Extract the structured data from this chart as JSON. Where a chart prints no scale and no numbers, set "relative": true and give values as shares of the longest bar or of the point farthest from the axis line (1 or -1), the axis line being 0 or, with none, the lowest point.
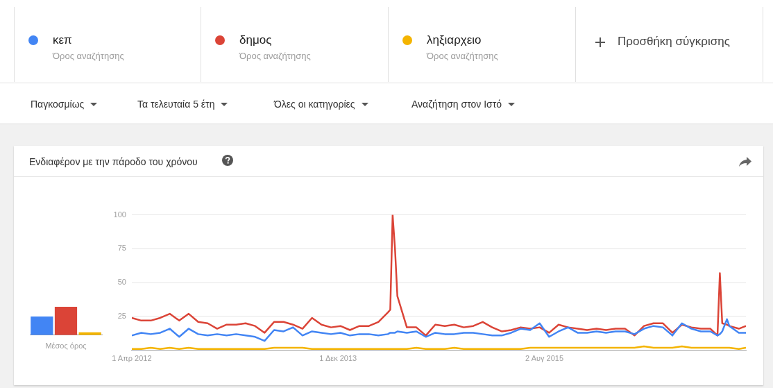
{
  "chart_data": [
    {
      "type": "bar",
      "relative": true,
      "categories": [
        null,
        null,
        null
      ],
      "values": [
        0.66,
        1,
        0.1
      ],
      "colors": [
        "#4285f4",
        "#db4437",
        "#f4b400"
      ],
      "xlabel": "Μέσος όρος"
    },
    {
      "type": "line",
      "title": "Ενδιαφέρον με την πάροδο του χρόνου",
      "legend": "top",
      "grid": "y",
      "marker": "none",
      "annotations": [
        "Όρος αναζήτησης",
        "Όρος αναζήτησης",
        "Όρος αναζήτησης",
        "Προσθήκη σύγκρισης",
        "Παγκοσμίως",
        "Τα τελευταία 5 έτη",
        "Όλες οι κατηγορίες",
        "Αναζήτηση στον Ιστό"
      ],
      "xlim": [
        "2012-04-01",
        "2017-03-19"
      ],
      "xticks": [
        {
          "value": "2012-04-01",
          "label": "1 Απρ 2012"
        },
        {
          "value": "2013-12-01",
          "label": "1 Δεκ 2013"
        },
        {
          "value": "2015-08-02",
          "label": "2 Αυγ 2015"
        }
      ],
      "ylim": [
        0,
        100
      ],
      "yticks": [
        {
          "value": 0,
          "label": null
        },
        25,
        50,
        75,
        100
      ],
      "x": [
        "2012-04-01",
        "2012-04-29",
        "2012-05-27",
        "2012-06-24",
        "2012-07-22",
        "2012-08-19",
        "2012-09-16",
        "2012-10-14",
        "2012-11-11",
        "2012-12-09",
        "2013-01-06",
        "2013-02-03",
        "2013-03-03",
        "2013-03-31",
        "2013-04-28",
        "2013-05-26",
        "2013-06-23",
        "2013-07-21",
        "2013-08-18",
        "2013-09-15",
        "2013-10-13",
        "2013-11-10",
        "2013-12-08",
        "2014-01-05",
        "2014-02-02",
        "2014-03-02",
        "2014-03-30",
        "2014-04-27",
        "2014-05-04",
        "2014-05-11",
        "2014-05-18",
        "2014-05-25",
        "2014-06-22",
        "2014-07-20",
        "2014-08-17",
        "2014-09-14",
        "2014-10-12",
        "2014-11-09",
        "2014-12-07",
        "2015-01-04",
        "2015-02-01",
        "2015-03-01",
        "2015-03-29",
        "2015-04-26",
        "2015-05-24",
        "2015-06-21",
        "2015-07-19",
        "2015-08-16",
        "2015-09-13",
        "2015-10-11",
        "2015-11-08",
        "2015-12-06",
        "2016-01-03",
        "2016-01-31",
        "2016-02-28",
        "2016-03-27",
        "2016-04-24",
        "2016-05-22",
        "2016-06-19",
        "2016-07-17",
        "2016-08-14",
        "2016-09-11",
        "2016-10-09",
        "2016-11-06",
        "2016-12-04",
        "2016-12-25",
        "2017-01-01",
        "2017-01-08",
        "2017-01-22",
        "2017-01-29",
        "2017-02-26",
        "2017-03-19"
      ],
      "series": [
        {
          "name": "κεπ",
          "color": "#4285f4",
          "values": [
            11,
            13,
            12,
            13,
            16,
            10,
            16,
            12,
            11,
            12,
            11,
            12,
            11,
            10,
            7,
            15,
            14,
            17,
            11,
            14,
            13,
            12,
            13,
            11,
            12,
            12,
            11,
            12,
            13,
            13,
            13,
            14,
            13,
            14,
            10,
            13,
            12,
            12,
            13,
            13,
            12,
            11,
            11,
            13,
            16,
            15,
            20,
            10,
            14,
            17,
            13,
            13,
            14,
            13,
            14,
            14,
            12,
            16,
            18,
            17,
            11,
            20,
            16,
            14,
            14,
            11,
            12,
            14,
            23,
            18,
            13,
            13
          ]
        },
        {
          "name": "δημος",
          "color": "#db4437",
          "values": [
            24,
            22,
            22,
            24,
            27,
            22,
            27,
            21,
            20,
            16,
            19,
            19,
            20,
            18,
            13,
            21,
            21,
            19,
            16,
            24,
            19,
            17,
            18,
            15,
            18,
            18,
            21,
            28,
            30,
            100,
            75,
            40,
            17,
            17,
            11,
            19,
            18,
            19,
            17,
            18,
            21,
            17,
            14,
            15,
            17,
            16,
            17,
            13,
            19,
            17,
            16,
            15,
            16,
            15,
            16,
            16,
            11,
            18,
            20,
            20,
            13,
            19,
            17,
            16,
            16,
            11,
            57,
            20,
            19,
            18,
            16,
            18
          ]
        },
        {
          "name": "ληξιαρχειο",
          "color": "#f4b400",
          "values": [
            1,
            1,
            2,
            1,
            2,
            1,
            2,
            1,
            1,
            1,
            1,
            1,
            1,
            1,
            1,
            2,
            2,
            2,
            2,
            1,
            1,
            1,
            1,
            1,
            1,
            1,
            1,
            1,
            1,
            1,
            1,
            1,
            1,
            2,
            1,
            1,
            1,
            2,
            1,
            1,
            1,
            1,
            1,
            1,
            1,
            2,
            2,
            2,
            2,
            2,
            2,
            2,
            2,
            2,
            2,
            2,
            2,
            3,
            2,
            2,
            2,
            3,
            2,
            2,
            2,
            2,
            2,
            2,
            2,
            2,
            1,
            2
          ]
        }
      ]
    }
  ]
}
